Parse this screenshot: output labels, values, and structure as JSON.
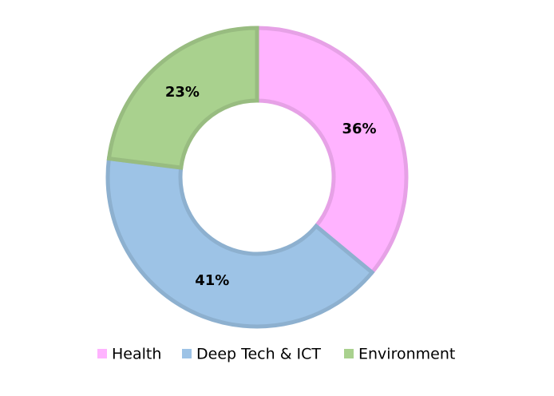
{
  "chart_data": {
    "type": "donut",
    "categories": [
      "Health",
      "Deep Tech & ICT",
      "Environment"
    ],
    "values": [
      36,
      41,
      23
    ],
    "value_labels": [
      "36%",
      "41%",
      "23%"
    ],
    "colors": [
      "#ffb3ff",
      "#9dc3e6",
      "#a9d18e"
    ],
    "legend": "bottom"
  }
}
